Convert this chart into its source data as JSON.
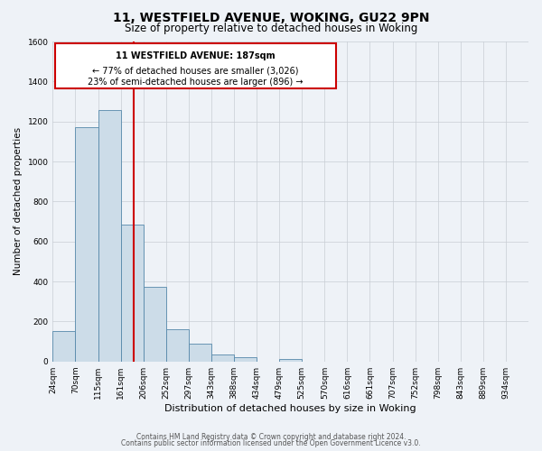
{
  "title_line1": "11, WESTFIELD AVENUE, WOKING, GU22 9PN",
  "title_line2": "Size of property relative to detached houses in Woking",
  "xlabel": "Distribution of detached houses by size in Woking",
  "ylabel": "Number of detached properties",
  "bar_labels": [
    "24sqm",
    "70sqm",
    "115sqm",
    "161sqm",
    "206sqm",
    "252sqm",
    "297sqm",
    "343sqm",
    "388sqm",
    "434sqm",
    "479sqm",
    "525sqm",
    "570sqm",
    "616sqm",
    "661sqm",
    "707sqm",
    "752sqm",
    "798sqm",
    "843sqm",
    "889sqm",
    "934sqm"
  ],
  "bar_values": [
    152,
    1170,
    1255,
    685,
    375,
    160,
    90,
    37,
    22,
    0,
    12,
    0,
    0,
    0,
    0,
    0,
    0,
    0,
    0,
    0,
    0
  ],
  "bar_color": "#ccdce8",
  "bar_edge_color": "#5588aa",
  "ylim": [
    0,
    1600
  ],
  "yticks": [
    0,
    200,
    400,
    600,
    800,
    1000,
    1200,
    1400,
    1600
  ],
  "annotation_box_text_line1": "11 WESTFIELD AVENUE: 187sqm",
  "annotation_box_text_line2": "← 77% of detached houses are smaller (3,026)",
  "annotation_box_text_line3": "23% of semi-detached houses are larger (896) →",
  "annotation_box_facecolor": "#ffffff",
  "annotation_box_edgecolor": "#cc0000",
  "red_line_color": "#cc0000",
  "footer_line1": "Contains HM Land Registry data © Crown copyright and database right 2024.",
  "footer_line2": "Contains public sector information licensed under the Open Government Licence v3.0.",
  "background_color": "#eef2f7",
  "grid_color": "#c8cdd4",
  "title1_fontsize": 10,
  "title2_fontsize": 8.5,
  "xlabel_fontsize": 8,
  "ylabel_fontsize": 7.5,
  "tick_fontsize": 6.5,
  "footer_fontsize": 5.5
}
